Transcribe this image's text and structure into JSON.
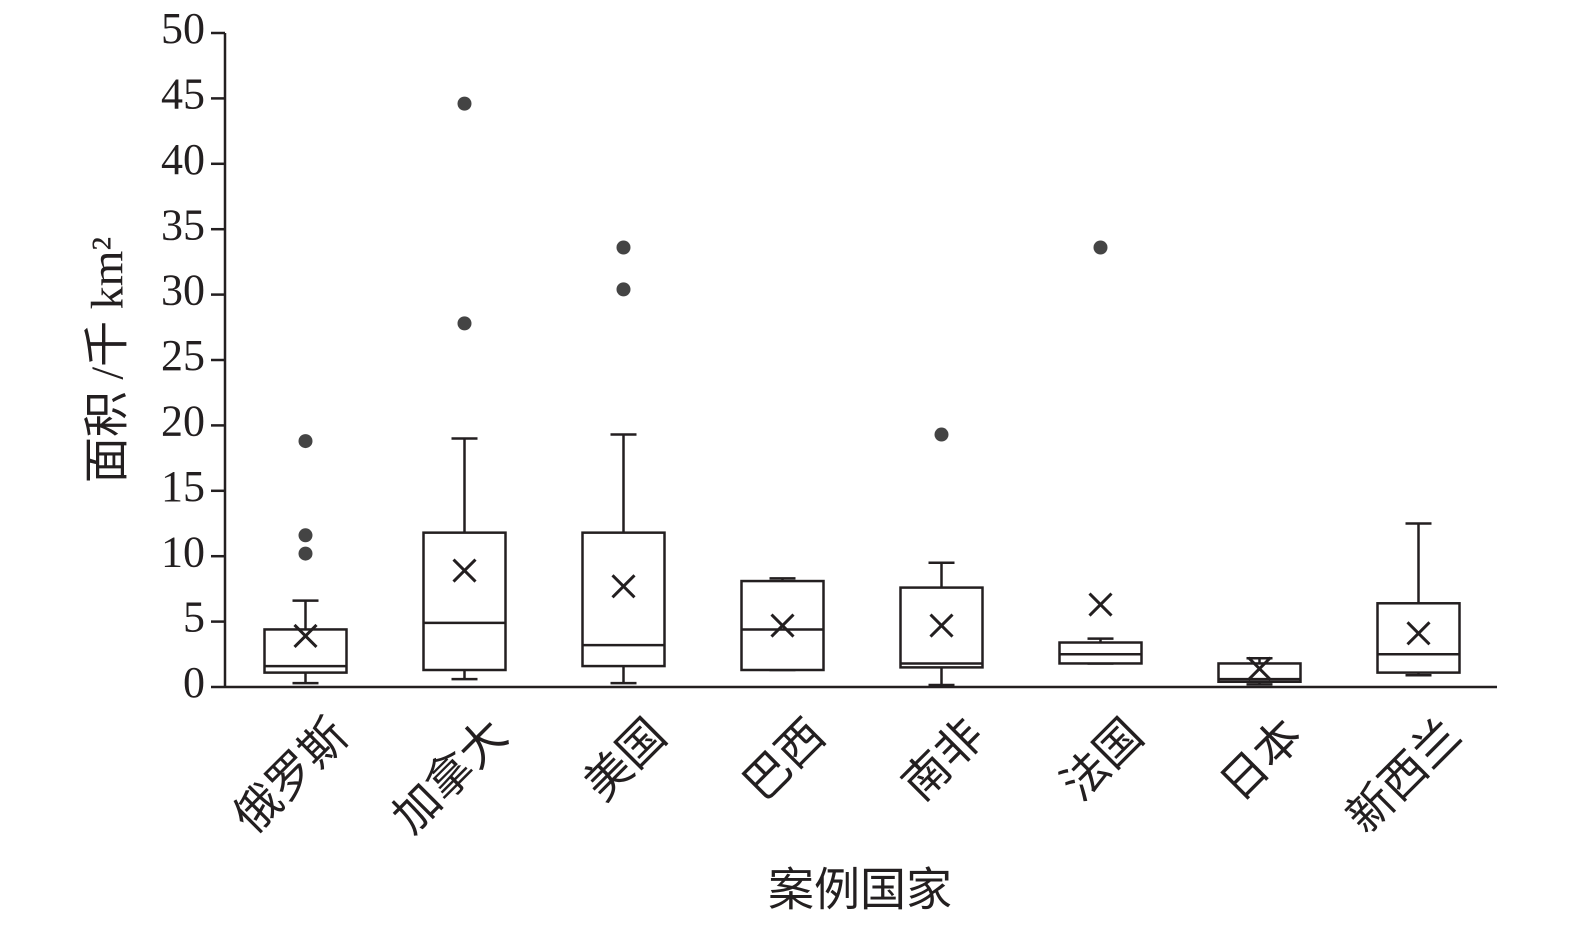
{
  "chart_data": {
    "type": "box",
    "x_label": "案例国家",
    "y_label": "面积 /千 km²",
    "categories": [
      "俄罗斯",
      "加拿大",
      "美国",
      "巴西",
      "南非",
      "法国",
      "日本",
      "新西兰"
    ],
    "min": [
      0.3,
      0.6,
      0.3,
      1.3,
      0.15,
      1.8,
      0.2,
      0.9
    ],
    "q1": [
      1.1,
      1.3,
      1.6,
      1.3,
      1.5,
      1.8,
      0.4,
      1.1
    ],
    "median": [
      1.6,
      4.9,
      3.2,
      4.4,
      1.8,
      2.5,
      0.6,
      2.5
    ],
    "q3": [
      4.4,
      11.8,
      11.8,
      8.1,
      7.6,
      3.4,
      1.8,
      6.4
    ],
    "max": [
      6.6,
      19.0,
      19.3,
      8.3,
      9.5,
      3.7,
      2.2,
      12.5
    ],
    "mean": [
      3.9,
      8.9,
      7.7,
      4.7,
      4.7,
      6.3,
      1.4,
      4.1
    ],
    "outliers": [
      [
        18.8,
        11.6,
        10.2
      ],
      [
        44.6,
        27.8
      ],
      [
        33.6,
        30.4
      ],
      [],
      [
        19.3
      ],
      [
        33.6
      ],
      [],
      []
    ],
    "color": "#231f20",
    "outlier_color": "#444444",
    "ylim": [
      0,
      50
    ],
    "yticks": [
      0,
      5,
      10,
      15,
      20,
      25,
      30,
      35,
      40,
      45,
      50
    ]
  }
}
